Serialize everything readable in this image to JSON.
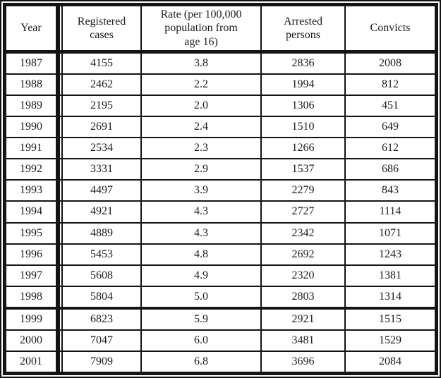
{
  "table": {
    "columns": [
      "Year",
      "Registered\ncases",
      "Rate (per 100,000\npopulation from\nage 16)",
      "Arrested\npersons",
      "Convicts"
    ],
    "column_names": [
      "year",
      "registered-cases",
      "rate",
      "arrested-persons",
      "convicts"
    ],
    "rows": [
      [
        "1987",
        "4155",
        "3.8",
        "2836",
        "2008"
      ],
      [
        "1988",
        "2462",
        "2.2",
        "1994",
        "812"
      ],
      [
        "1989",
        "2195",
        "2.0",
        "1306",
        "451"
      ],
      [
        "1990",
        "2691",
        "2.4",
        "1510",
        "649"
      ],
      [
        "1991",
        "2534",
        "2.3",
        "1266",
        "612"
      ],
      [
        "1992",
        "3331",
        "2.9",
        "1537",
        "686"
      ],
      [
        "1993",
        "4497",
        "3.9",
        "2279",
        "843"
      ],
      [
        "1994",
        "4921",
        "4.3",
        "2727",
        "1114"
      ],
      [
        "1995",
        "4889",
        "4.3",
        "2342",
        "1071"
      ],
      [
        "1996",
        "5453",
        "4.8",
        "2692",
        "1243"
      ],
      [
        "1997",
        "5608",
        "4.9",
        "2320",
        "1381"
      ],
      [
        "1998",
        "5804",
        "5.0",
        "2803",
        "1314"
      ],
      [
        "1999",
        "6823",
        "5.9",
        "2921",
        "1515"
      ],
      [
        "2000",
        "7047",
        "6.0",
        "3481",
        "1529"
      ],
      [
        "2001",
        "7909",
        "6.8",
        "3696",
        "2084"
      ]
    ],
    "thick_separator_after_year": "1998"
  },
  "chart_data": {
    "type": "table",
    "columns": [
      "Year",
      "Registered cases",
      "Rate (per 100,000 population from age 16)",
      "Arrested persons",
      "Convicts"
    ],
    "rows": [
      [
        1987,
        4155,
        3.8,
        2836,
        2008
      ],
      [
        1988,
        2462,
        2.2,
        1994,
        812
      ],
      [
        1989,
        2195,
        2.0,
        1306,
        451
      ],
      [
        1990,
        2691,
        2.4,
        1510,
        649
      ],
      [
        1991,
        2534,
        2.3,
        1266,
        612
      ],
      [
        1992,
        3331,
        2.9,
        1537,
        686
      ],
      [
        1993,
        4497,
        3.9,
        2279,
        843
      ],
      [
        1994,
        4921,
        4.3,
        2727,
        1114
      ],
      [
        1995,
        4889,
        4.3,
        2342,
        1071
      ],
      [
        1996,
        5453,
        4.8,
        2692,
        1243
      ],
      [
        1997,
        5608,
        4.9,
        2320,
        1381
      ],
      [
        1998,
        5804,
        5.0,
        2803,
        1314
      ],
      [
        1999,
        6823,
        5.9,
        2921,
        1515
      ],
      [
        2000,
        7047,
        6.0,
        3481,
        1529
      ],
      [
        2001,
        7909,
        6.8,
        3696,
        2084
      ]
    ]
  },
  "colors": {
    "border": "#141414",
    "text": "#1c1c1c",
    "background": "#ffffff"
  }
}
